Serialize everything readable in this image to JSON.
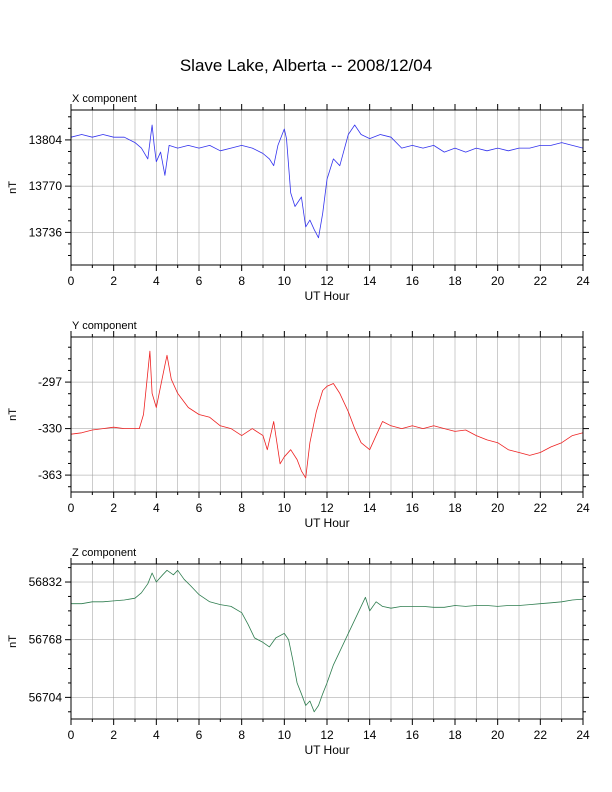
{
  "title": "Slave Lake, Alberta -- 2008/12/04",
  "chart_data": [
    {
      "type": "line",
      "panel_label": "X component",
      "xlabel": "UT Hour",
      "ylabel": "nT",
      "xlim": [
        0,
        24
      ],
      "ylim": [
        13712,
        13826
      ],
      "xticks": [
        0,
        2,
        4,
        6,
        8,
        10,
        12,
        14,
        16,
        18,
        20,
        22,
        24
      ],
      "yticks": [
        13736,
        13770,
        13804
      ],
      "grid": true,
      "color": "#3333ee",
      "x": [
        0,
        0.5,
        1,
        1.5,
        2,
        2.5,
        3,
        3.3,
        3.6,
        3.8,
        3.9,
        4,
        4.2,
        4.4,
        4.6,
        5,
        5.5,
        6,
        6.5,
        7,
        7.5,
        8,
        8.5,
        9,
        9.3,
        9.5,
        9.7,
        10,
        10.1,
        10.3,
        10.5,
        10.8,
        11,
        11.2,
        11.4,
        11.6,
        11.8,
        12,
        12.3,
        12.6,
        13,
        13.3,
        13.6,
        14,
        14.5,
        15,
        15.5,
        16,
        16.5,
        17,
        17.5,
        18,
        18.5,
        19,
        19.5,
        20,
        20.5,
        21,
        21.5,
        22,
        22.5,
        23,
        23.5,
        24
      ],
      "y": [
        13806,
        13808,
        13806,
        13808,
        13806,
        13806,
        13802,
        13798,
        13790,
        13815,
        13800,
        13788,
        13795,
        13778,
        13800,
        13798,
        13800,
        13798,
        13800,
        13796,
        13798,
        13800,
        13798,
        13794,
        13790,
        13785,
        13800,
        13812,
        13805,
        13765,
        13755,
        13762,
        13740,
        13745,
        13738,
        13732,
        13750,
        13775,
        13790,
        13785,
        13808,
        13815,
        13808,
        13805,
        13808,
        13806,
        13798,
        13800,
        13798,
        13800,
        13795,
        13798,
        13795,
        13798,
        13796,
        13798,
        13796,
        13798,
        13798,
        13800,
        13800,
        13802,
        13800,
        13798
      ]
    },
    {
      "type": "line",
      "panel_label": "Y component",
      "xlabel": "UT Hour",
      "ylabel": "nT",
      "xlim": [
        0,
        24
      ],
      "ylim": [
        -375,
        -265
      ],
      "xticks": [
        0,
        2,
        4,
        6,
        8,
        10,
        12,
        14,
        16,
        18,
        20,
        22,
        24
      ],
      "yticks": [
        -297,
        -330,
        -363
      ],
      "grid": true,
      "color": "#ee2222",
      "x": [
        0,
        0.5,
        1,
        1.5,
        2,
        2.5,
        3,
        3.2,
        3.4,
        3.6,
        3.7,
        3.8,
        4,
        4.2,
        4.4,
        4.5,
        4.7,
        5,
        5.5,
        6,
        6.5,
        7,
        7.5,
        8,
        8.5,
        9,
        9.2,
        9.5,
        9.8,
        10,
        10.3,
        10.6,
        10.8,
        11,
        11.2,
        11.5,
        11.8,
        12,
        12.3,
        12.6,
        13,
        13.3,
        13.6,
        14,
        14.3,
        14.6,
        15,
        15.5,
        16,
        16.5,
        17,
        17.5,
        18,
        18.5,
        19,
        19.5,
        20,
        20.5,
        21,
        21.5,
        22,
        22.5,
        23,
        23.5,
        24
      ],
      "y": [
        -334,
        -333,
        -331,
        -330,
        -329,
        -330,
        -330,
        -330,
        -320,
        -290,
        -275,
        -305,
        -315,
        -300,
        -285,
        -278,
        -295,
        -305,
        -315,
        -320,
        -322,
        -328,
        -330,
        -335,
        -330,
        -335,
        -345,
        -325,
        -355,
        -350,
        -345,
        -352,
        -360,
        -365,
        -340,
        -318,
        -303,
        -300,
        -298,
        -305,
        -318,
        -330,
        -340,
        -345,
        -335,
        -325,
        -328,
        -330,
        -328,
        -330,
        -328,
        -330,
        -332,
        -331,
        -335,
        -338,
        -340,
        -345,
        -347,
        -349,
        -347,
        -343,
        -340,
        -335,
        -333
      ]
    },
    {
      "type": "line",
      "panel_label": "Z component",
      "xlabel": "UT Hour",
      "ylabel": "nT",
      "xlim": [
        0,
        24
      ],
      "ylim": [
        56680,
        56852
      ],
      "xticks": [
        0,
        2,
        4,
        6,
        8,
        10,
        12,
        14,
        16,
        18,
        20,
        22,
        24
      ],
      "yticks": [
        56704,
        56768,
        56832
      ],
      "grid": true,
      "color": "#2e7d4f",
      "x": [
        0,
        0.5,
        1,
        1.5,
        2,
        2.5,
        3,
        3.3,
        3.6,
        3.8,
        4,
        4.3,
        4.5,
        4.8,
        5,
        5.3,
        5.6,
        6,
        6.5,
        7,
        7.5,
        8,
        8.3,
        8.6,
        9,
        9.3,
        9.6,
        10,
        10.2,
        10.4,
        10.6,
        10.8,
        11,
        11.2,
        11.4,
        11.6,
        11.8,
        12,
        12.3,
        12.6,
        13,
        13.3,
        13.6,
        13.8,
        14,
        14.3,
        14.6,
        15,
        15.5,
        16,
        16.5,
        17,
        17.5,
        18,
        18.5,
        19,
        19.5,
        20,
        20.5,
        21,
        21.5,
        22,
        22.5,
        23,
        23.5,
        24
      ],
      "y": [
        56808,
        56808,
        56810,
        56810,
        56811,
        56812,
        56814,
        56820,
        56830,
        56842,
        56832,
        56840,
        56845,
        56840,
        56845,
        56835,
        56828,
        56818,
        56810,
        56807,
        56805,
        56798,
        56785,
        56770,
        56765,
        56760,
        56770,
        56775,
        56768,
        56745,
        56720,
        56708,
        56695,
        56700,
        56688,
        56695,
        56708,
        56720,
        56740,
        56755,
        56775,
        56790,
        56805,
        56815,
        56800,
        56810,
        56805,
        56803,
        56805,
        56805,
        56805,
        56804,
        56804,
        56806,
        56805,
        56806,
        56806,
        56805,
        56806,
        56806,
        56807,
        56808,
        56809,
        56810,
        56812,
        56813
      ]
    }
  ]
}
